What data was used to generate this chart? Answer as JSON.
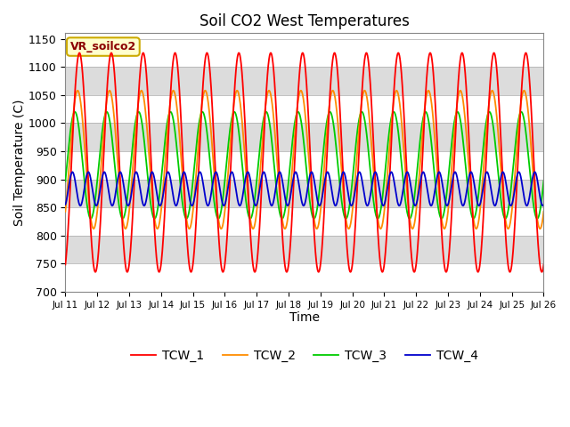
{
  "title": "Soil CO2 West Temperatures",
  "xlabel": "Time",
  "ylabel": "Soil Temperature (C)",
  "ylim": [
    700,
    1160
  ],
  "annotation_label": "VR_soilco2",
  "colors": {
    "TCW_1": "#FF0000",
    "TCW_2": "#FF8C00",
    "TCW_3": "#00CC00",
    "TCW_4": "#0000CD"
  },
  "band_color": "#DCDCDC",
  "background_color": "#FFFFFF",
  "legend_labels": [
    "TCW_1",
    "TCW_2",
    "TCW_3",
    "TCW_4"
  ],
  "tcw1_mean": 930,
  "tcw1_amp": 195,
  "tcw1_period": 1.0,
  "tcw1_phase": -1.2,
  "tcw2_mean": 935,
  "tcw2_amp": 123,
  "tcw2_period": 1.0,
  "tcw2_phase": -0.85,
  "tcw3_mean": 925,
  "tcw3_amp": 95,
  "tcw3_period": 1.0,
  "tcw3_phase": -0.3,
  "tcw4_mean": 883,
  "tcw4_amp": 30,
  "tcw4_period": 0.5,
  "tcw4_phase": -1.2
}
